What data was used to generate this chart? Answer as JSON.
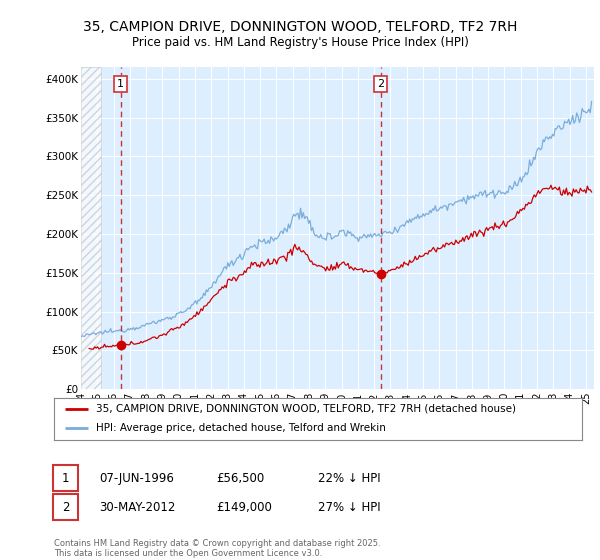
{
  "title": "35, CAMPION DRIVE, DONNINGTON WOOD, TELFORD, TF2 7RH",
  "subtitle": "Price paid vs. HM Land Registry's House Price Index (HPI)",
  "ylabel_ticks": [
    "£0",
    "£50K",
    "£100K",
    "£150K",
    "£200K",
    "£250K",
    "£300K",
    "£350K",
    "£400K"
  ],
  "ytick_vals": [
    0,
    50000,
    100000,
    150000,
    200000,
    250000,
    300000,
    350000,
    400000
  ],
  "ylim": [
    0,
    415000
  ],
  "xlim_start": 1994.0,
  "xlim_end": 2025.5,
  "hatch_end": 1995.25,
  "sale1_x": 1996.44,
  "sale1_y": 56500,
  "sale1_label": "1",
  "sale2_x": 2012.41,
  "sale2_y": 149000,
  "sale2_label": "2",
  "legend_line1": "35, CAMPION DRIVE, DONNINGTON WOOD, TELFORD, TF2 7RH (detached house)",
  "legend_line2": "HPI: Average price, detached house, Telford and Wrekin",
  "table_row1": [
    "1",
    "07-JUN-1996",
    "£56,500",
    "22% ↓ HPI"
  ],
  "table_row2": [
    "2",
    "30-MAY-2012",
    "£149,000",
    "27% ↓ HPI"
  ],
  "footnote": "Contains HM Land Registry data © Crown copyright and database right 2025.\nThis data is licensed under the Open Government Licence v3.0.",
  "red_color": "#cc0000",
  "blue_color": "#7aaddb",
  "bg_color": "#ddeeff",
  "box_color": "#cc3333",
  "hpi_anchors": [
    [
      1994.0,
      68000
    ],
    [
      1994.5,
      70000
    ],
    [
      1995.0,
      72000
    ],
    [
      1995.5,
      74000
    ],
    [
      1996.0,
      74500
    ],
    [
      1996.5,
      75500
    ],
    [
      1997.0,
      78000
    ],
    [
      1997.5,
      80000
    ],
    [
      1998.0,
      83000
    ],
    [
      1998.5,
      86000
    ],
    [
      1999.0,
      89000
    ],
    [
      1999.5,
      93000
    ],
    [
      2000.0,
      97000
    ],
    [
      2000.5,
      103000
    ],
    [
      2001.0,
      110000
    ],
    [
      2001.5,
      118000
    ],
    [
      2002.0,
      132000
    ],
    [
      2002.5,
      148000
    ],
    [
      2003.0,
      158000
    ],
    [
      2003.5,
      167000
    ],
    [
      2004.0,
      176000
    ],
    [
      2004.5,
      185000
    ],
    [
      2005.0,
      188000
    ],
    [
      2005.5,
      190000
    ],
    [
      2006.0,
      195000
    ],
    [
      2006.5,
      205000
    ],
    [
      2007.0,
      218000
    ],
    [
      2007.25,
      228000
    ],
    [
      2007.5,
      225000
    ],
    [
      2007.75,
      220000
    ],
    [
      2008.0,
      210000
    ],
    [
      2008.5,
      200000
    ],
    [
      2009.0,
      195000
    ],
    [
      2009.5,
      197000
    ],
    [
      2010.0,
      203000
    ],
    [
      2010.5,
      200000
    ],
    [
      2011.0,
      197000
    ],
    [
      2011.5,
      196000
    ],
    [
      2012.0,
      198000
    ],
    [
      2012.5,
      200000
    ],
    [
      2013.0,
      203000
    ],
    [
      2013.5,
      208000
    ],
    [
      2014.0,
      215000
    ],
    [
      2014.5,
      220000
    ],
    [
      2015.0,
      225000
    ],
    [
      2015.5,
      230000
    ],
    [
      2016.0,
      233000
    ],
    [
      2016.5,
      237000
    ],
    [
      2017.0,
      242000
    ],
    [
      2017.5,
      245000
    ],
    [
      2018.0,
      248000
    ],
    [
      2018.5,
      250000
    ],
    [
      2019.0,
      252000
    ],
    [
      2019.5,
      253000
    ],
    [
      2020.0,
      252000
    ],
    [
      2020.5,
      258000
    ],
    [
      2021.0,
      270000
    ],
    [
      2021.5,
      285000
    ],
    [
      2022.0,
      305000
    ],
    [
      2022.5,
      320000
    ],
    [
      2023.0,
      330000
    ],
    [
      2023.5,
      338000
    ],
    [
      2024.0,
      345000
    ],
    [
      2024.5,
      352000
    ],
    [
      2025.0,
      358000
    ],
    [
      2025.3,
      362000
    ]
  ],
  "price_anchors": [
    [
      1994.5,
      52000
    ],
    [
      1995.0,
      53000
    ],
    [
      1995.5,
      54500
    ],
    [
      1996.0,
      55500
    ],
    [
      1996.44,
      56500
    ],
    [
      1997.0,
      58000
    ],
    [
      1997.5,
      60000
    ],
    [
      1998.0,
      63000
    ],
    [
      1998.5,
      66000
    ],
    [
      1999.0,
      70000
    ],
    [
      1999.5,
      75000
    ],
    [
      2000.0,
      80000
    ],
    [
      2000.5,
      87000
    ],
    [
      2001.0,
      95000
    ],
    [
      2001.5,
      105000
    ],
    [
      2002.0,
      115000
    ],
    [
      2002.5,
      128000
    ],
    [
      2003.0,
      137000
    ],
    [
      2003.5,
      144000
    ],
    [
      2004.0,
      150000
    ],
    [
      2004.5,
      158000
    ],
    [
      2005.0,
      162000
    ],
    [
      2005.5,
      163000
    ],
    [
      2006.0,
      165000
    ],
    [
      2006.5,
      172000
    ],
    [
      2007.0,
      178000
    ],
    [
      2007.25,
      183000
    ],
    [
      2007.5,
      180000
    ],
    [
      2007.75,
      175000
    ],
    [
      2008.0,
      168000
    ],
    [
      2008.5,
      160000
    ],
    [
      2009.0,
      155000
    ],
    [
      2009.5,
      156000
    ],
    [
      2010.0,
      160000
    ],
    [
      2010.5,
      158000
    ],
    [
      2011.0,
      155000
    ],
    [
      2011.5,
      153000
    ],
    [
      2012.0,
      151000
    ],
    [
      2012.41,
      149000
    ],
    [
      2012.5,
      150000
    ],
    [
      2013.0,
      153000
    ],
    [
      2013.5,
      157000
    ],
    [
      2014.0,
      162000
    ],
    [
      2014.5,
      168000
    ],
    [
      2015.0,
      173000
    ],
    [
      2015.5,
      178000
    ],
    [
      2016.0,
      181000
    ],
    [
      2016.5,
      186000
    ],
    [
      2017.0,
      190000
    ],
    [
      2017.5,
      194000
    ],
    [
      2018.0,
      198000
    ],
    [
      2018.5,
      202000
    ],
    [
      2019.0,
      206000
    ],
    [
      2019.5,
      210000
    ],
    [
      2020.0,
      212000
    ],
    [
      2020.5,
      220000
    ],
    [
      2021.0,
      230000
    ],
    [
      2021.5,
      240000
    ],
    [
      2022.0,
      252000
    ],
    [
      2022.5,
      258000
    ],
    [
      2023.0,
      260000
    ],
    [
      2023.5,
      255000
    ],
    [
      2024.0,
      252000
    ],
    [
      2024.5,
      255000
    ],
    [
      2025.0,
      257000
    ],
    [
      2025.3,
      258000
    ]
  ]
}
